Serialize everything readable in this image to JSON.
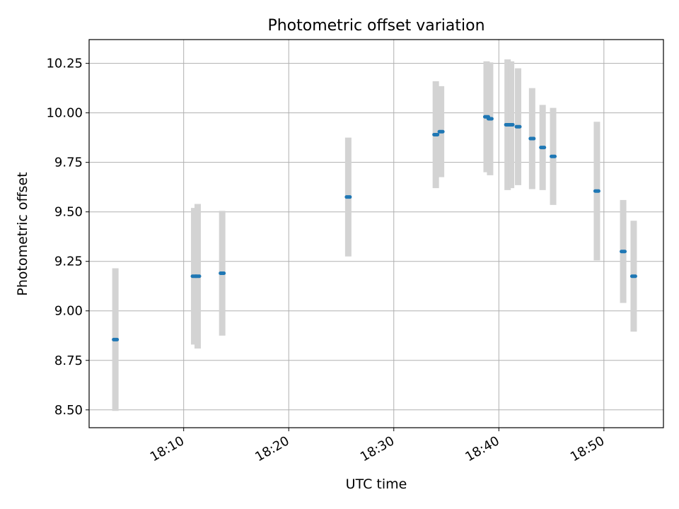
{
  "chart_data": {
    "type": "scatter",
    "title": "Photometric offset variation",
    "xlabel": "UTC time",
    "ylabel": "Photometric offset",
    "x_ticks": [
      "18:10",
      "18:20",
      "18:30",
      "18:40",
      "18:50"
    ],
    "y_ticks": [
      "8.50",
      "8.75",
      "9.00",
      "9.25",
      "9.50",
      "9.75",
      "10.00",
      "10.25"
    ],
    "xlim": [
      "18:01:00",
      "18:55:40"
    ],
    "ylim": [
      8.41,
      10.37
    ],
    "grid": true,
    "colors": {
      "points": "#1f77b4",
      "error_bars": "#d3d3d3",
      "grid": "#b0b0b0"
    },
    "series": [
      {
        "points": [
          {
            "x": "18:03:30",
            "y": 8.855,
            "err": 0.36
          },
          {
            "x": "18:11:00",
            "y": 9.175,
            "err": 0.345
          },
          {
            "x": "18:11:20",
            "y": 9.175,
            "err": 0.365
          },
          {
            "x": "18:13:40",
            "y": 9.19,
            "err": 0.315
          },
          {
            "x": "18:25:40",
            "y": 9.575,
            "err": 0.3
          },
          {
            "x": "18:34:00",
            "y": 9.89,
            "err": 0.27
          },
          {
            "x": "18:34:30",
            "y": 9.905,
            "err": 0.23
          },
          {
            "x": "18:38:50",
            "y": 9.98,
            "err": 0.28
          },
          {
            "x": "18:39:10",
            "y": 9.97,
            "err": 0.285
          },
          {
            "x": "18:40:50",
            "y": 9.94,
            "err": 0.33
          },
          {
            "x": "18:41:10",
            "y": 9.94,
            "err": 0.32
          },
          {
            "x": "18:41:50",
            "y": 9.93,
            "err": 0.295
          },
          {
            "x": "18:43:10",
            "y": 9.87,
            "err": 0.255
          },
          {
            "x": "18:44:10",
            "y": 9.825,
            "err": 0.215
          },
          {
            "x": "18:45:10",
            "y": 9.78,
            "err": 0.245
          },
          {
            "x": "18:49:20",
            "y": 9.605,
            "err": 0.35
          },
          {
            "x": "18:51:50",
            "y": 9.3,
            "err": 0.26
          },
          {
            "x": "18:52:50",
            "y": 9.175,
            "err": 0.28
          }
        ]
      }
    ]
  }
}
